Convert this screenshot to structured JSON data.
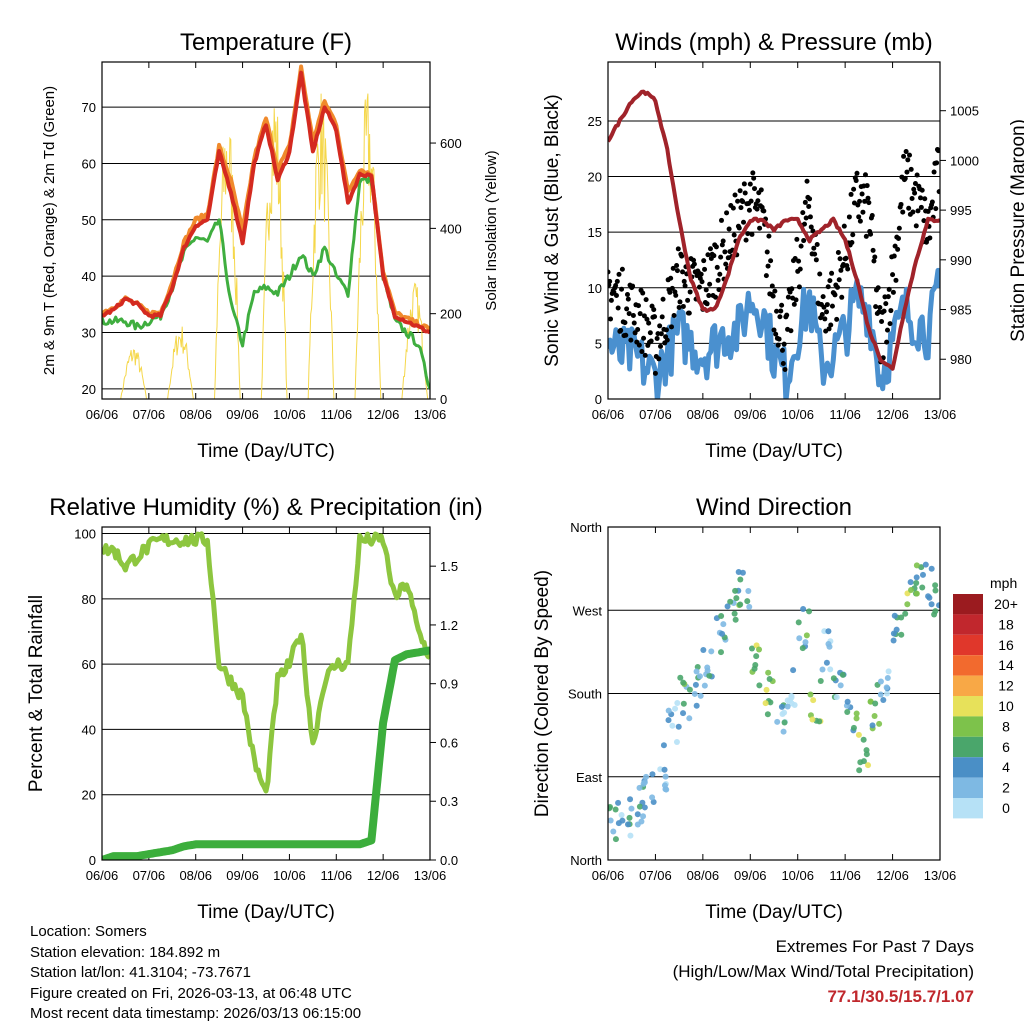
{
  "chart_data": [
    {
      "type": "line",
      "title": "Temperature (F)",
      "xlabel": "Time (Day/UTC)",
      "ylabel": "2m & 9m T (Red, Orange) & 2m Td (Green)",
      "ylabel_right": "Solar Insolation (Yellow)",
      "x_ticks": [
        "06/06",
        "07/06",
        "08/06",
        "09/06",
        "10/06",
        "11/06",
        "12/06",
        "13/06"
      ],
      "ylim": [
        18.2,
        78
      ],
      "y_ticks": [
        20,
        30,
        40,
        50,
        60,
        70
      ],
      "ylim_right": [
        0,
        790
      ],
      "y_ticks_right": [
        0,
        200,
        400,
        600
      ],
      "x_step_days": 0.25,
      "series": [
        {
          "name": "2m T",
          "color": "#d42a20",
          "values": [
            33,
            34,
            36,
            35,
            33,
            33,
            38,
            45,
            49,
            50,
            62,
            55,
            46,
            60,
            67,
            57,
            62,
            76,
            62,
            70,
            66,
            53,
            58,
            58,
            40,
            33,
            32,
            31,
            30
          ]
        },
        {
          "name": "9m T",
          "color": "#f08a2c",
          "values": [
            33.5,
            34.5,
            36,
            35,
            33.5,
            33.5,
            39,
            46,
            50,
            51,
            63,
            57,
            48,
            61,
            68,
            59,
            63,
            77,
            64,
            71,
            67,
            55,
            59,
            58,
            41,
            33.5,
            32.5,
            31.5,
            30.5
          ]
        },
        {
          "name": "2m Td",
          "color": "#3fae3f",
          "values": [
            32,
            32,
            32,
            31,
            32,
            33,
            38,
            44,
            47,
            46,
            50,
            35,
            28,
            37,
            38,
            37,
            40,
            44,
            40,
            45,
            40,
            37,
            57,
            57,
            40,
            32,
            30,
            28,
            20
          ]
        }
      ],
      "solar_daily_peaks": [
        130,
        180,
        700,
        760,
        740,
        740,
        280
      ]
    },
    {
      "type": "line",
      "title": "Winds (mph) & Pressure (mb)",
      "xlabel": "Time (Day/UTC)",
      "ylabel": "Sonic Wind & Gust (Blue, Black)",
      "ylabel_right": "Station Pressure (Maroon)",
      "x_ticks": [
        "06/06",
        "07/06",
        "08/06",
        "09/06",
        "10/06",
        "11/06",
        "12/06",
        "13/06"
      ],
      "ylim": [
        0,
        30.3
      ],
      "y_ticks": [
        0,
        5,
        10,
        15,
        20,
        25
      ],
      "ylim_right": [
        976,
        1009.9
      ],
      "y_ticks_right": [
        980,
        985,
        990,
        995,
        1000,
        1005
      ],
      "x_step_days": 0.25,
      "series": [
        {
          "name": "Sonic Wind",
          "color": "#4a90cf",
          "values": [
            5,
            4,
            4,
            3,
            2,
            4,
            6,
            5,
            4,
            5,
            6,
            6,
            9,
            8,
            4,
            2,
            6,
            9,
            3,
            4,
            6,
            9,
            8,
            2,
            5,
            8,
            7,
            6,
            10
          ]
        },
        {
          "name": "Gust",
          "color": "#000000",
          "values": [
            10,
            9,
            8,
            7,
            5,
            8,
            11,
            10,
            10,
            12,
            14,
            16,
            18,
            16,
            9,
            5,
            12,
            18,
            8,
            9,
            13,
            18,
            17,
            5,
            11,
            20,
            18,
            15,
            21
          ]
        },
        {
          "name": "Station Pressure",
          "color": "#a0232a",
          "values": [
            1002,
            1004,
            1006,
            1007,
            1006,
            1001,
            994,
            988,
            985,
            985,
            988,
            992,
            994,
            994,
            993,
            994,
            994,
            992,
            993,
            994,
            992,
            988,
            983,
            980,
            979,
            985,
            990,
            994,
            994
          ]
        }
      ]
    },
    {
      "type": "line",
      "title": "Relative Humidity (%) & Precipitation (in)",
      "xlabel": "Time (Day/UTC)",
      "ylabel": "Percent & Total Rainfall",
      "x_ticks": [
        "06/06",
        "07/06",
        "08/06",
        "09/06",
        "10/06",
        "11/06",
        "12/06",
        "13/06"
      ],
      "ylim": [
        0,
        102
      ],
      "y_ticks": [
        0,
        20,
        40,
        60,
        80,
        100
      ],
      "ylim_right": [
        0,
        1.7
      ],
      "y_ticks_right": [
        "0.0",
        "0.3",
        "0.6",
        "0.9",
        "1.2",
        "1.5"
      ],
      "x_step_days": 0.25,
      "series": [
        {
          "name": "Relative Humidity",
          "color": "#8dc63f",
          "values": [
            95,
            95,
            90,
            93,
            96,
            98,
            98,
            98,
            98,
            98,
            60,
            55,
            50,
            30,
            20,
            55,
            60,
            70,
            35,
            55,
            60,
            60,
            98,
            98,
            98,
            80,
            85,
            70,
            62
          ]
        },
        {
          "name": "Total Precipitation",
          "color": "#3cae3c",
          "values": [
            0,
            0.02,
            0.02,
            0.02,
            0.03,
            0.04,
            0.05,
            0.07,
            0.08,
            0.08,
            0.08,
            0.08,
            0.08,
            0.08,
            0.08,
            0.08,
            0.08,
            0.08,
            0.08,
            0.08,
            0.08,
            0.08,
            0.08,
            0.1,
            0.7,
            1.02,
            1.05,
            1.06,
            1.07
          ]
        }
      ]
    },
    {
      "type": "scatter",
      "title": "Wind Direction",
      "xlabel": "Time (Day/UTC)",
      "ylabel": "Direction (Colored By Speed)",
      "x_ticks": [
        "06/06",
        "07/06",
        "08/06",
        "09/06",
        "10/06",
        "11/06",
        "12/06",
        "13/06"
      ],
      "ylim": [
        0,
        360
      ],
      "y_tick_labels": [
        "North",
        "East",
        "South",
        "West",
        "North"
      ],
      "x_step_days": 0.25,
      "direction_deg": [
        40,
        45,
        60,
        80,
        100,
        150,
        175,
        190,
        210,
        240,
        270,
        290,
        210,
        180,
        160,
        190,
        250,
        170,
        230,
        180,
        160,
        120,
        165,
        190,
        260,
        290,
        300,
        290,
        285
      ],
      "speed_mph": [
        5,
        4,
        4,
        3,
        2,
        4,
        6,
        5,
        4,
        5,
        6,
        6,
        9,
        8,
        4,
        2,
        6,
        9,
        3,
        4,
        6,
        9,
        8,
        2,
        5,
        8,
        7,
        6,
        10
      ],
      "legend": {
        "title": "mph",
        "labels": [
          "20+",
          "18",
          "16",
          "14",
          "12",
          "10",
          "8",
          "6",
          "4",
          "2",
          "0"
        ],
        "colors": [
          "#9b1b1f",
          "#c1272d",
          "#e0372b",
          "#f26a2e",
          "#f8a846",
          "#e7e15a",
          "#7dc24b",
          "#4aa66b",
          "#4a8fc6",
          "#7eb9e3",
          "#b6e1f6"
        ]
      }
    }
  ],
  "info": {
    "location": "Location: Somers",
    "elevation": "Station elevation: 184.892 m",
    "latlon": "Station lat/lon: 41.3104; -73.7671",
    "created": "Figure created on Fri, 2026-03-13, at 06:48 UTC",
    "recent": "Most recent data timestamp: 2026/03/13 06:15:00"
  },
  "extremes": {
    "title": "Extremes For Past 7 Days",
    "subtitle": "(High/Low/Max Wind/Total Precipitation)",
    "values": "77.1/30.5/15.7/1.07"
  }
}
